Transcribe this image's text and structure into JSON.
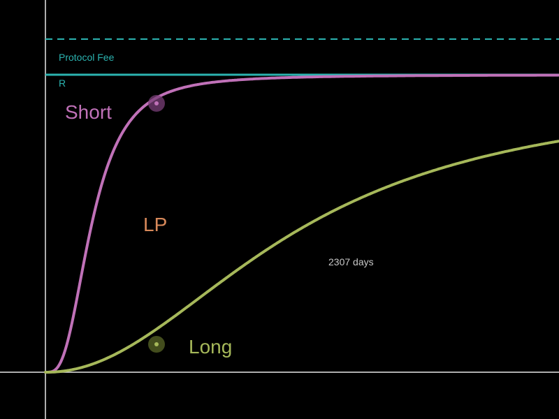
{
  "chart_data": {
    "type": "line",
    "title": "",
    "xlabel": "",
    "ylabel": "",
    "annotation": "2307 days",
    "reference_lines": [
      {
        "name": "Protocol Fee",
        "style": "dashed",
        "color": "#2bb3b0"
      },
      {
        "name": "R",
        "style": "solid",
        "color": "#2bb3b0"
      }
    ],
    "series": [
      {
        "name": "Short",
        "color": "#c071b8",
        "marker_color": "#7a3f78"
      },
      {
        "name": "Long",
        "color": "#a6b85a",
        "marker_color": "#4f5a22"
      }
    ],
    "region_label": {
      "text": "LP",
      "color": "#d8895a"
    },
    "axis_color": "#e8e8e8",
    "background": "#000000"
  }
}
